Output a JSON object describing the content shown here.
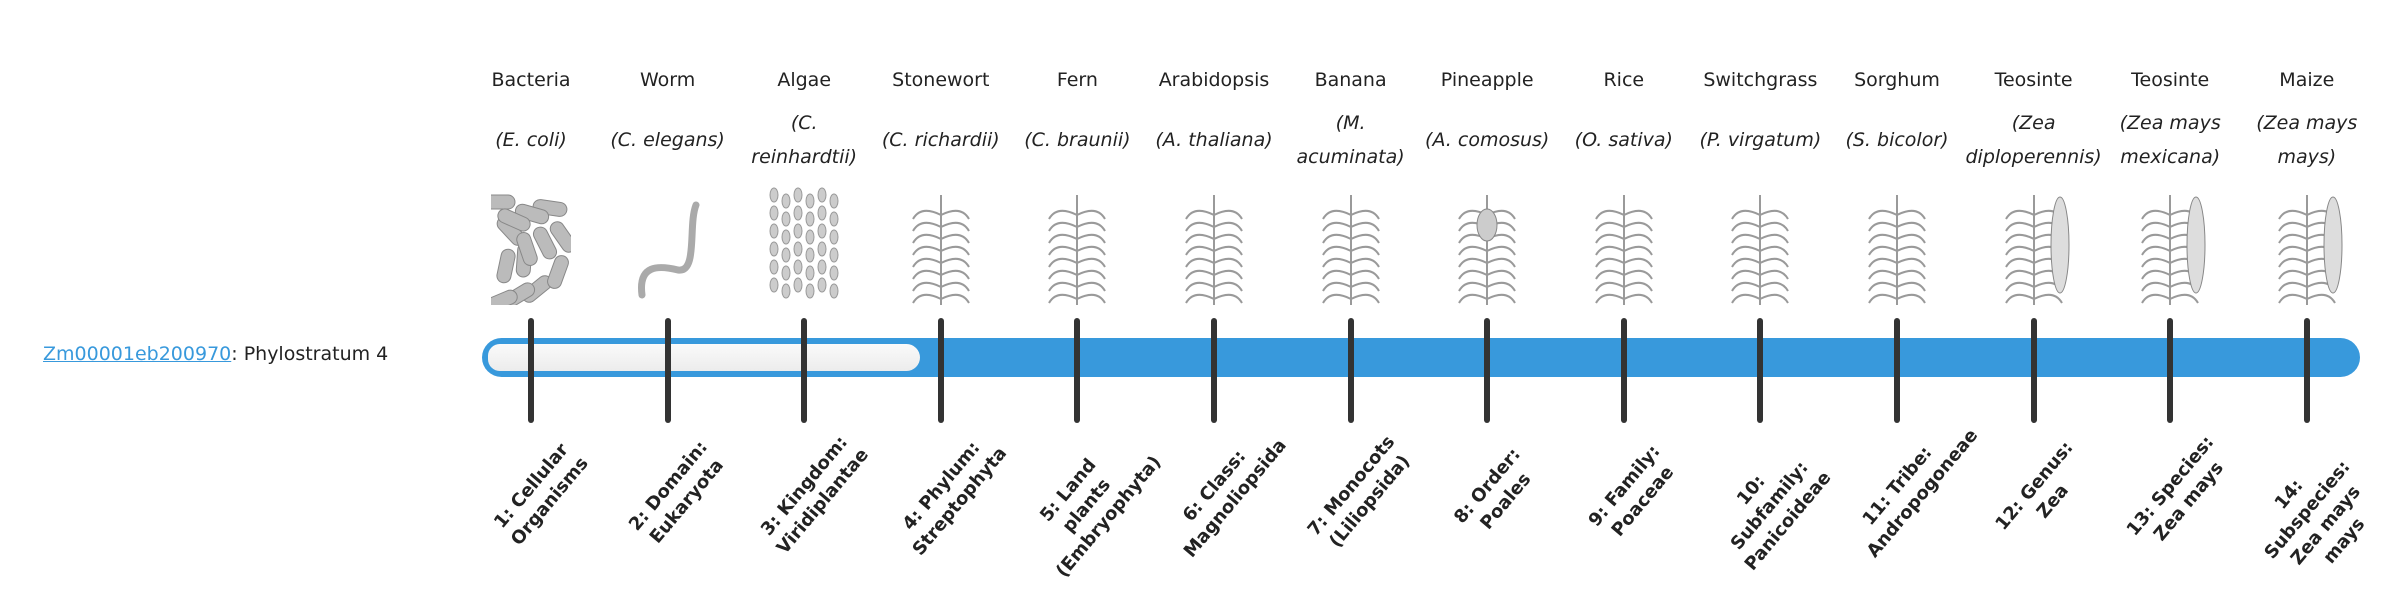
{
  "gene": {
    "id": "Zm00001eb200970",
    "suffix": ": Phylostratum 4"
  },
  "phylostratum": 4,
  "colors": {
    "accent": "#3899dc",
    "tick": "#333333"
  },
  "organisms": [
    {
      "common": "Bacteria",
      "latin": "(E. coli)",
      "icon": "bacteria-icon"
    },
    {
      "common": "Worm",
      "latin": "(C. elegans)",
      "icon": "worm-icon"
    },
    {
      "common": "Algae",
      "latin": "(C. reinhardtii)",
      "icon": "algae-icon"
    },
    {
      "common": "Stonewort",
      "latin": "(C. richardii)",
      "icon": "stonewort-icon"
    },
    {
      "common": "Fern",
      "latin": "(C. braunii)",
      "icon": "fern-icon"
    },
    {
      "common": "Arabidopsis",
      "latin": "(A. thaliana)",
      "icon": "arabidopsis-icon"
    },
    {
      "common": "Banana",
      "latin": "(M. acuminata)",
      "icon": "banana-icon"
    },
    {
      "common": "Pineapple",
      "latin": "(A. comosus)",
      "icon": "pineapple-icon"
    },
    {
      "common": "Rice",
      "latin": "(O. sativa)",
      "icon": "rice-icon"
    },
    {
      "common": "Switchgrass",
      "latin": "(P. virgatum)",
      "icon": "switchgrass-icon"
    },
    {
      "common": "Sorghum",
      "latin": "(S. bicolor)",
      "icon": "sorghum-icon"
    },
    {
      "common": "Teosinte",
      "latin": "(Zea diploperennis)",
      "icon": "teosinte-icon"
    },
    {
      "common": "Teosinte",
      "latin": "(Zea mays mexicana)",
      "icon": "teosinte-icon"
    },
    {
      "common": "Maize",
      "latin": "(Zea mays mays)",
      "icon": "maize-icon"
    }
  ],
  "strata": [
    "1: Cellular Organisms",
    "2: Domain: Eukaryota",
    "3: Kingdom: Viridiplantae",
    "4: Phylum: Streptophyta",
    "5: Land plants (Embryophyta)",
    "6: Class: Magnoliopsida",
    "7: Monocots (Liliopsida)",
    "8: Order: Poales",
    "9: Family: Poaceae",
    "10: Subfamily: Panicoideae",
    "11: Tribe: Andropogoneae",
    "12: Genus: Zea",
    "13: Species: Zea mays",
    "14: Subspecies: Zea mays mays"
  ]
}
